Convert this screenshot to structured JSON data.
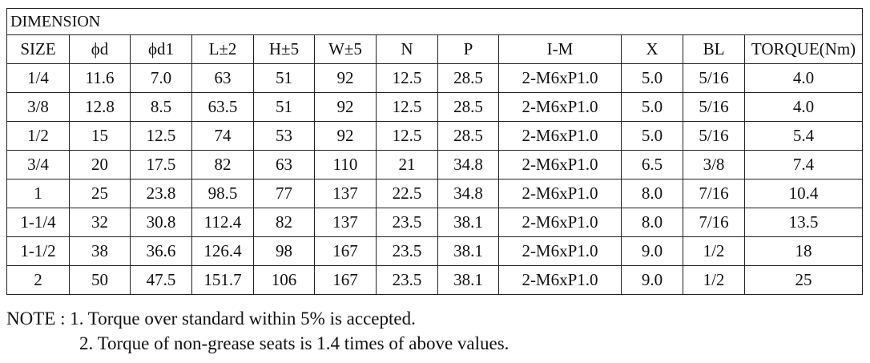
{
  "table": {
    "title": "DIMENSION",
    "headers": [
      "SIZE",
      "ϕd",
      "ϕd1",
      "L±2",
      "H±5",
      "W±5",
      "N",
      "P",
      "I-M",
      "X",
      "BL",
      "TORQUE(Nm)"
    ],
    "rows": [
      [
        "1/4",
        "11.6",
        "7.0",
        "63",
        "51",
        "92",
        "12.5",
        "28.5",
        "2-M6xP1.0",
        "5.0",
        "5/16",
        "4.0"
      ],
      [
        "3/8",
        "12.8",
        "8.5",
        "63.5",
        "51",
        "92",
        "12.5",
        "28.5",
        "2-M6xP1.0",
        "5.0",
        "5/16",
        "4.0"
      ],
      [
        "1/2",
        "15",
        "12.5",
        "74",
        "53",
        "92",
        "12.5",
        "28.5",
        "2-M6xP1.0",
        "5.0",
        "5/16",
        "5.4"
      ],
      [
        "3/4",
        "20",
        "17.5",
        "82",
        "63",
        "110",
        "21",
        "34.8",
        "2-M6xP1.0",
        "6.5",
        "3/8",
        "7.4"
      ],
      [
        "1",
        "25",
        "23.8",
        "98.5",
        "77",
        "137",
        "22.5",
        "34.8",
        "2-M6xP1.0",
        "8.0",
        "7/16",
        "10.4"
      ],
      [
        "1-1/4",
        "32",
        "30.8",
        "112.4",
        "82",
        "137",
        "23.5",
        "38.1",
        "2-M6xP1.0",
        "8.0",
        "7/16",
        "13.5"
      ],
      [
        "1-1/2",
        "38",
        "36.6",
        "126.4",
        "98",
        "167",
        "23.5",
        "38.1",
        "2-M6xP1.0",
        "9.0",
        "1/2",
        "18"
      ],
      [
        "2",
        "50",
        "47.5",
        "151.7",
        "106",
        "167",
        "23.5",
        "38.1",
        "2-M6xP1.0",
        "9.0",
        "1/2",
        "25"
      ]
    ]
  },
  "notes": {
    "line1": "NOTE : 1. Torque over standard within 5% is accepted.",
    "line2": "2. Torque of non-grease seats is 1.4 times of above values."
  }
}
